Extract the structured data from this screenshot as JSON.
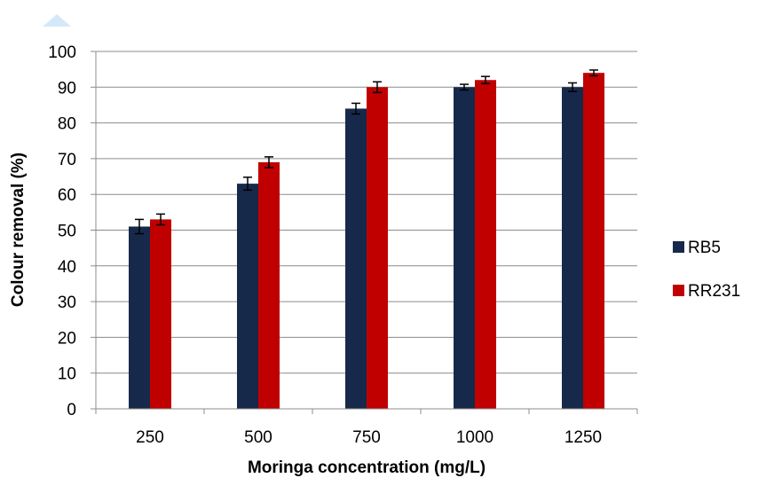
{
  "chart_data": {
    "type": "bar",
    "categories": [
      "250",
      "500",
      "750",
      "1000",
      "1250"
    ],
    "series": [
      {
        "name": "RB5",
        "values": [
          51,
          63,
          84,
          90,
          90
        ],
        "errors": [
          2,
          1.8,
          1.5,
          0.8,
          1.2
        ],
        "color": "#17294a"
      },
      {
        "name": "RR231",
        "values": [
          53,
          69,
          90,
          92,
          94
        ],
        "errors": [
          1.5,
          1.5,
          1.5,
          1,
          0.8
        ],
        "color": "#c00000"
      }
    ],
    "xlabel": "Moringa concentration (mg/L)",
    "ylabel": "Colour removal (%)",
    "ylim": [
      0,
      100
    ],
    "yticks": [
      0,
      10,
      20,
      30,
      40,
      50,
      60,
      70,
      80,
      90,
      100
    ],
    "grid": "horizontal",
    "legend_position": "right",
    "error_bars": true
  }
}
